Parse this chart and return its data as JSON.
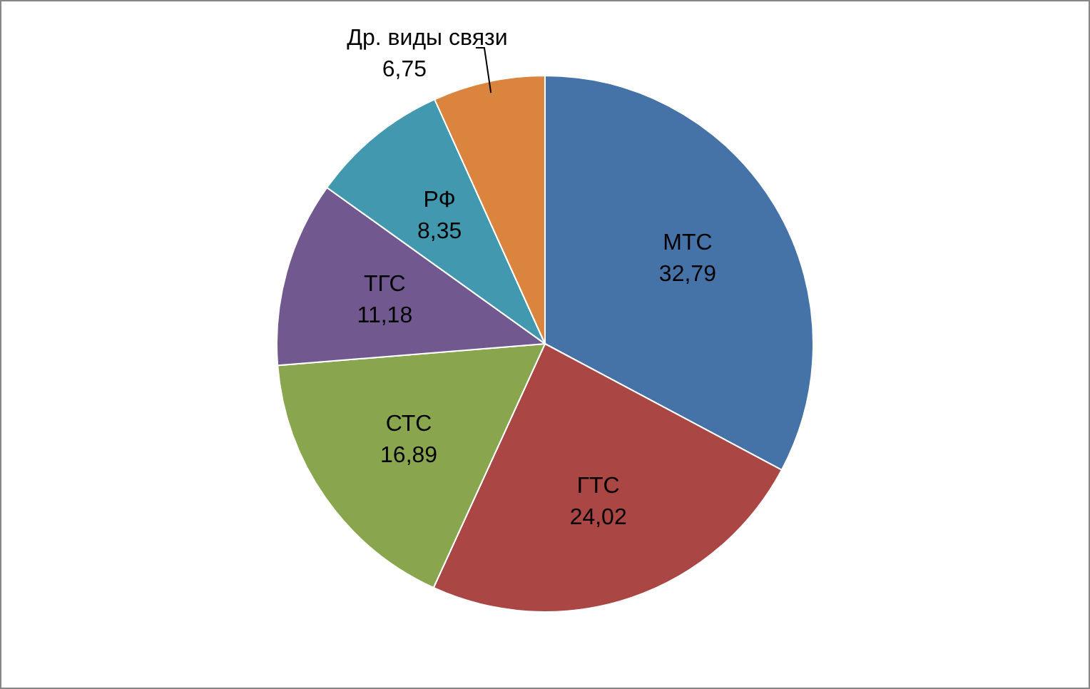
{
  "chart_data": {
    "type": "pie",
    "categories": [
      "МТС",
      "ГТС",
      "СТС",
      "ТГС",
      "РФ",
      "Др. виды связи"
    ],
    "values": [
      32.79,
      24.02,
      16.89,
      11.18,
      8.35,
      6.75
    ],
    "colors": [
      "#4572a7",
      "#aa4643",
      "#89a54e",
      "#71588f",
      "#4198af",
      "#db843d"
    ],
    "value_labels": [
      "32,79",
      "24,02",
      "16,89",
      "11,18",
      "8,35",
      "6,75"
    ]
  }
}
